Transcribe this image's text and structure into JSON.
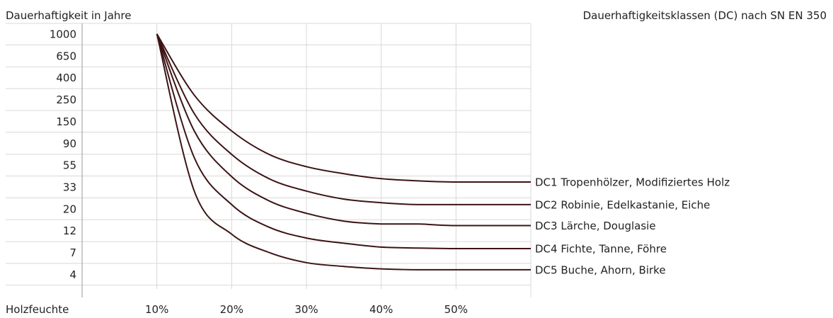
{
  "chart_data": {
    "type": "line",
    "ylabel": "Dauerhaftigkeit in Jahre",
    "xlabel": "Holzfeuchte",
    "legend_title": "Dauerhaftigkeitsklassen (DC) nach SN EN 350",
    "y_ticks": [
      "1000",
      "650",
      "400",
      "250",
      "150",
      "90",
      "55",
      "33",
      "20",
      "12",
      "7",
      "4"
    ],
    "x_ticks": [
      "10%",
      "20%",
      "30%",
      "40%",
      "50%"
    ],
    "xlim": [
      0,
      60
    ],
    "grid": true,
    "line_color": "#3d1414",
    "series": [
      {
        "name": "DC1 Tropenhölzer, Modifiziertes Holz",
        "points": [
          [
            10,
            1000
          ],
          [
            15,
            275
          ],
          [
            20,
            120
          ],
          [
            25,
            70
          ],
          [
            30,
            53
          ],
          [
            35,
            45
          ],
          [
            40,
            40
          ],
          [
            45,
            38
          ],
          [
            50,
            37
          ],
          [
            60,
            37
          ]
        ]
      },
      {
        "name": "DC2 Robinie, Edelkastanie, Eiche",
        "points": [
          [
            10,
            1000
          ],
          [
            15,
            180
          ],
          [
            20,
            70
          ],
          [
            25,
            40
          ],
          [
            30,
            30
          ],
          [
            35,
            25
          ],
          [
            40,
            23
          ],
          [
            45,
            22
          ],
          [
            50,
            22
          ],
          [
            60,
            22
          ]
        ]
      },
      {
        "name": "DC3 Lärche, Douglasie",
        "points": [
          [
            10,
            1000
          ],
          [
            15,
            120
          ],
          [
            20,
            42
          ],
          [
            25,
            24
          ],
          [
            30,
            18
          ],
          [
            35,
            15
          ],
          [
            40,
            14
          ],
          [
            45,
            14
          ],
          [
            50,
            13.5
          ],
          [
            60,
            13.5
          ]
        ]
      },
      {
        "name": "DC4 Fichte, Tanne, Föhre",
        "points": [
          [
            10,
            1000
          ],
          [
            15,
            65
          ],
          [
            20,
            22
          ],
          [
            25,
            13
          ],
          [
            30,
            10
          ],
          [
            35,
            8.8
          ],
          [
            40,
            8
          ],
          [
            45,
            7.8
          ],
          [
            50,
            7.7
          ],
          [
            60,
            7.7
          ]
        ]
      },
      {
        "name": "DC5 Buche, Ahorn, Birke",
        "points": [
          [
            10,
            1000
          ],
          [
            15,
            30
          ],
          [
            20,
            11
          ],
          [
            25,
            7
          ],
          [
            30,
            5.4
          ],
          [
            35,
            4.9
          ],
          [
            40,
            4.6
          ],
          [
            45,
            4.5
          ],
          [
            50,
            4.5
          ],
          [
            60,
            4.5
          ]
        ]
      }
    ]
  }
}
